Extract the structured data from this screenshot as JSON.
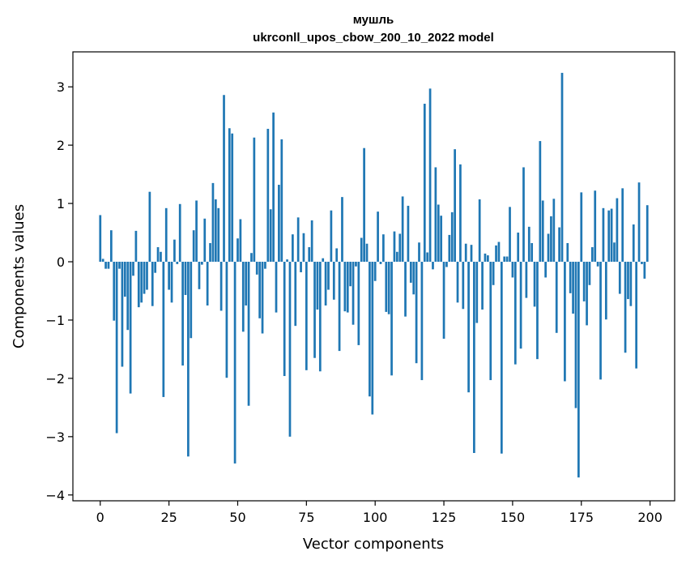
{
  "chart_data": {
    "type": "bar",
    "title": [
      "мушль",
      "ukrconll_upos_cbow_200_10_2022 model"
    ],
    "xlabel": "Vector components",
    "ylabel": "Components values",
    "xlim": [
      -9.95,
      208.95
    ],
    "ylim": [
      -4.1,
      3.6
    ],
    "xticks": [
      0,
      25,
      50,
      75,
      100,
      125,
      150,
      175,
      200
    ],
    "yticks": [
      3,
      2,
      1,
      0,
      -1,
      -2,
      -3,
      -4
    ],
    "ytick_labels": [
      "3",
      "2",
      "1",
      "0",
      "−1",
      "−2",
      "−3",
      "−4"
    ],
    "grid": false,
    "bar_color": "#1f77b4",
    "x": [
      0,
      1,
      2,
      3,
      4,
      5,
      6,
      7,
      8,
      9,
      10,
      11,
      12,
      13,
      14,
      15,
      16,
      17,
      18,
      19,
      20,
      21,
      22,
      23,
      24,
      25,
      26,
      27,
      28,
      29,
      30,
      31,
      32,
      33,
      34,
      35,
      36,
      37,
      38,
      39,
      40,
      41,
      42,
      43,
      44,
      45,
      46,
      47,
      48,
      49,
      50,
      51,
      52,
      53,
      54,
      55,
      56,
      57,
      58,
      59,
      60,
      61,
      62,
      63,
      64,
      65,
      66,
      67,
      68,
      69,
      70,
      71,
      72,
      73,
      74,
      75,
      76,
      77,
      78,
      79,
      80,
      81,
      82,
      83,
      84,
      85,
      86,
      87,
      88,
      89,
      90,
      91,
      92,
      93,
      94,
      95,
      96,
      97,
      98,
      99,
      100,
      101,
      102,
      103,
      104,
      105,
      106,
      107,
      108,
      109,
      110,
      111,
      112,
      113,
      114,
      115,
      116,
      117,
      118,
      119,
      120,
      121,
      122,
      123,
      124,
      125,
      126,
      127,
      128,
      129,
      130,
      131,
      132,
      133,
      134,
      135,
      136,
      137,
      138,
      139,
      140,
      141,
      142,
      143,
      144,
      145,
      146,
      147,
      148,
      149,
      150,
      151,
      152,
      153,
      154,
      155,
      156,
      157,
      158,
      159,
      160,
      161,
      162,
      163,
      164,
      165,
      166,
      167,
      168,
      169,
      170,
      171,
      172,
      173,
      174,
      175,
      176,
      177,
      178,
      179,
      180,
      181,
      182,
      183,
      184,
      185,
      186,
      187,
      188,
      189,
      190,
      191,
      192,
      193,
      194,
      195,
      196,
      197,
      198,
      199
    ],
    "values": [
      0.8,
      0.05,
      -0.12,
      -0.12,
      0.54,
      -1.01,
      -2.94,
      -0.12,
      -1.8,
      -0.6,
      -1.17,
      -2.26,
      -0.24,
      0.53,
      -0.78,
      -0.7,
      -0.55,
      -0.48,
      1.2,
      -0.76,
      -0.19,
      0.25,
      0.17,
      -2.32,
      0.92,
      -0.48,
      -0.7,
      0.38,
      -0.04,
      0.99,
      -1.78,
      -0.57,
      -3.34,
      -1.31,
      0.54,
      1.05,
      -0.47,
      -0.05,
      0.74,
      -0.75,
      0.32,
      1.35,
      1.07,
      0.92,
      -0.84,
      2.86,
      -1.99,
      2.29,
      2.2,
      -3.46,
      0.4,
      0.73,
      -1.2,
      -0.75,
      -2.47,
      0.15,
      2.13,
      -0.22,
      -0.97,
      -1.23,
      -0.12,
      2.28,
      0.9,
      2.56,
      -0.87,
      1.32,
      2.1,
      -1.96,
      0.04,
      -3.0,
      0.47,
      -1.1,
      0.76,
      -0.18,
      0.49,
      -1.86,
      0.25,
      0.71,
      -1.65,
      -0.82,
      -1.88,
      0.06,
      -0.75,
      -0.48,
      0.88,
      -0.65,
      0.23,
      -1.53,
      1.11,
      -0.85,
      -0.87,
      -0.42,
      -1.08,
      -0.08,
      -1.43,
      0.41,
      1.95,
      0.31,
      -2.31,
      -2.62,
      -0.33,
      0.86,
      -0.04,
      0.47,
      -0.86,
      -0.9,
      -1.95,
      0.52,
      0.17,
      0.48,
      1.12,
      -0.94,
      0.96,
      -0.36,
      -0.56,
      -1.74,
      0.33,
      -2.03,
      2.71,
      0.16,
      2.97,
      -0.13,
      1.62,
      0.98,
      0.79,
      -1.32,
      -0.09,
      0.46,
      0.85,
      1.93,
      -0.7,
      1.67,
      -0.81,
      0.31,
      -2.24,
      0.29,
      -3.28,
      -1.05,
      1.07,
      -0.82,
      0.14,
      0.11,
      -2.03,
      -0.4,
      0.28,
      0.34,
      -3.29,
      0.09,
      0.09,
      0.94,
      -0.27,
      -1.76,
      0.5,
      -1.49,
      1.62,
      -0.62,
      0.6,
      0.32,
      -0.77,
      -1.67,
      2.07,
      1.05,
      -0.27,
      0.48,
      0.78,
      1.08,
      -1.22,
      0.59,
      3.24,
      -2.05,
      0.32,
      -0.54,
      -0.89,
      -2.51,
      -3.7,
      1.19,
      -0.68,
      -1.09,
      -0.4,
      0.25,
      1.22,
      -0.08,
      -2.02,
      0.92,
      -0.99,
      0.88,
      0.91,
      0.33,
      1.09,
      -0.55,
      1.26,
      -1.56,
      -0.64,
      -0.76,
      0.64,
      -1.83,
      1.36,
      -0.04,
      -0.29,
      0.97
    ]
  }
}
